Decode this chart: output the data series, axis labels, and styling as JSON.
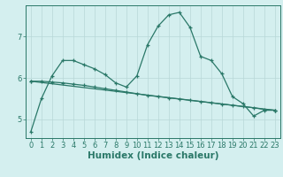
{
  "xlabel": "Humidex (Indice chaleur)",
  "bg_color": "#d4efef",
  "line_color": "#2a7868",
  "grid_color": "#b8d8d8",
  "xlim": [
    -0.5,
    23.5
  ],
  "ylim": [
    4.55,
    7.75
  ],
  "yticks": [
    5,
    6,
    7
  ],
  "xticks": [
    0,
    1,
    2,
    3,
    4,
    5,
    6,
    7,
    8,
    9,
    10,
    11,
    12,
    13,
    14,
    15,
    16,
    17,
    18,
    19,
    20,
    21,
    22,
    23
  ],
  "series1_x": [
    0,
    1,
    2,
    3,
    4,
    5,
    6,
    7,
    8,
    9,
    10,
    11,
    12,
    13,
    14,
    15,
    16,
    17,
    18,
    19,
    20,
    21,
    22,
    23
  ],
  "series1_y": [
    4.7,
    5.5,
    6.05,
    6.42,
    6.42,
    6.32,
    6.22,
    6.08,
    5.88,
    5.78,
    6.05,
    6.8,
    7.25,
    7.52,
    7.58,
    7.22,
    6.52,
    6.42,
    6.1,
    5.55,
    5.38,
    5.08,
    5.22,
    5.22
  ],
  "series2_x": [
    0,
    1,
    2,
    3,
    4,
    5,
    6,
    7,
    8,
    9,
    10,
    11,
    12,
    13,
    14,
    15,
    16,
    17,
    18,
    19,
    20,
    21,
    22,
    23
  ],
  "series2_y": [
    5.92,
    5.92,
    5.9,
    5.88,
    5.85,
    5.82,
    5.78,
    5.74,
    5.7,
    5.66,
    5.62,
    5.58,
    5.55,
    5.52,
    5.49,
    5.46,
    5.43,
    5.4,
    5.37,
    5.34,
    5.31,
    5.28,
    5.24,
    5.22
  ],
  "series3_x": [
    0,
    23
  ],
  "series3_y": [
    5.92,
    5.22
  ],
  "tick_fontsize": 6,
  "xlabel_fontsize": 7.5
}
